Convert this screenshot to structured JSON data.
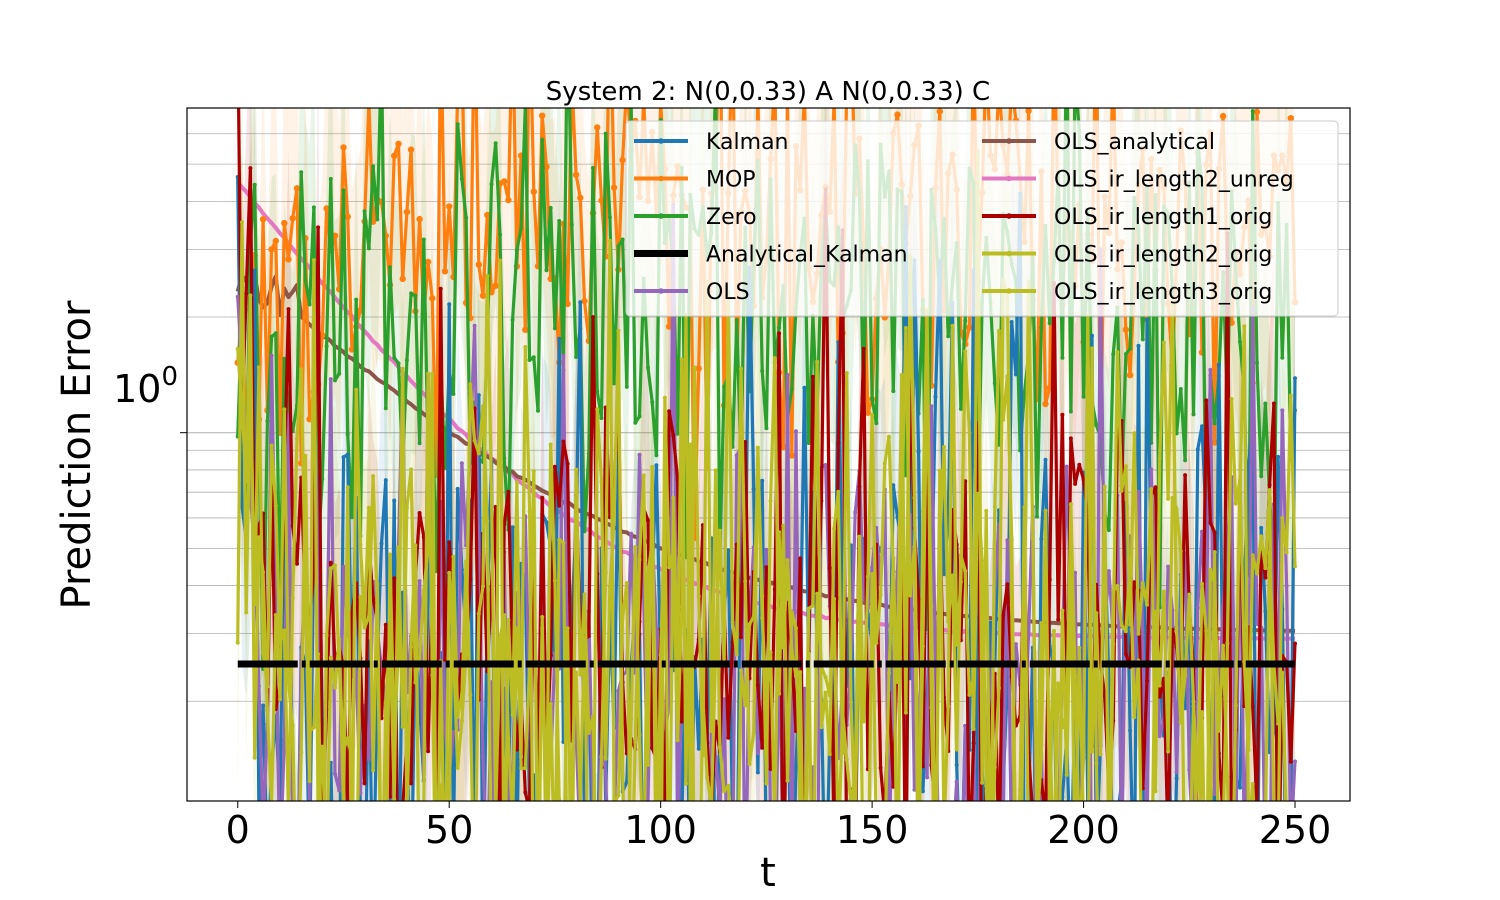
{
  "chart_data": {
    "type": "line",
    "title": "System 2: N(0,0.33) A N(0,0.33) C",
    "xlabel": "t",
    "ylabel": "Prediction Error",
    "xlim": [
      -12,
      263
    ],
    "ylim": [
      0.11,
      7.0
    ],
    "yscale": "log",
    "x_ticks": [
      0,
      50,
      100,
      150,
      200,
      250
    ],
    "x_tick_labels": [
      "0",
      "50",
      "100",
      "150",
      "200",
      "250"
    ],
    "y_major_tick_label": "10",
    "y_major_tick_exponent": "0",
    "y_major_tick_value": 1,
    "grid": "horizontal, major and minor y",
    "legend_position": "top-right",
    "series": [
      {
        "name": "Kalman",
        "color": "#1f77b4",
        "style": "noisy",
        "start": 1.6,
        "base": 0.22,
        "decay": 2,
        "amp": 1.1,
        "fill": true
      },
      {
        "name": "MOP",
        "color": "#ff7f0e",
        "style": "noisy",
        "start": 1.6,
        "base": 3.5,
        "decay": 30,
        "amp": 0.6,
        "fill": true
      },
      {
        "name": "Zero",
        "color": "#2ca02c",
        "style": "noisy",
        "start": 1.6,
        "base": 2.0,
        "decay": 10,
        "amp": 0.7,
        "fill": true
      },
      {
        "name": "Analytical_Kalman",
        "color": "#000000",
        "style": "constant",
        "value": 0.25
      },
      {
        "name": "OLS",
        "color": "#9467bd",
        "style": "noisy",
        "start": 1.6,
        "base": 0.22,
        "decay": 2,
        "amp": 1.0,
        "fill": false
      },
      {
        "name": "OLS_analytical",
        "color": "#8c564b",
        "style": "smooth",
        "start": 2.0,
        "end": 0.3,
        "tau": 40,
        "offset": 15
      },
      {
        "name": "OLS_ir_length2_unreg",
        "color": "#e377c2",
        "style": "smooth",
        "start": 4.5,
        "end": 0.29,
        "tau": 30,
        "offset": 0
      },
      {
        "name": "OLS_ir_length1_orig",
        "color": "#aa0000",
        "style": "noisy",
        "start": 1.8,
        "base": 0.3,
        "decay": 3,
        "amp": 0.9,
        "fill": true
      },
      {
        "name": "OLS_ir_length2_orig",
        "color": "#bcbd22",
        "style": "noisy",
        "start": 1.6,
        "base": 0.26,
        "decay": 3,
        "amp": 1.0,
        "fill": true
      },
      {
        "name": "OLS_ir_length3_orig",
        "color": "#bcbd22",
        "style": "noisy",
        "start": 1.6,
        "base": 0.26,
        "decay": 3,
        "amp": 1.05,
        "fill": true
      }
    ]
  }
}
